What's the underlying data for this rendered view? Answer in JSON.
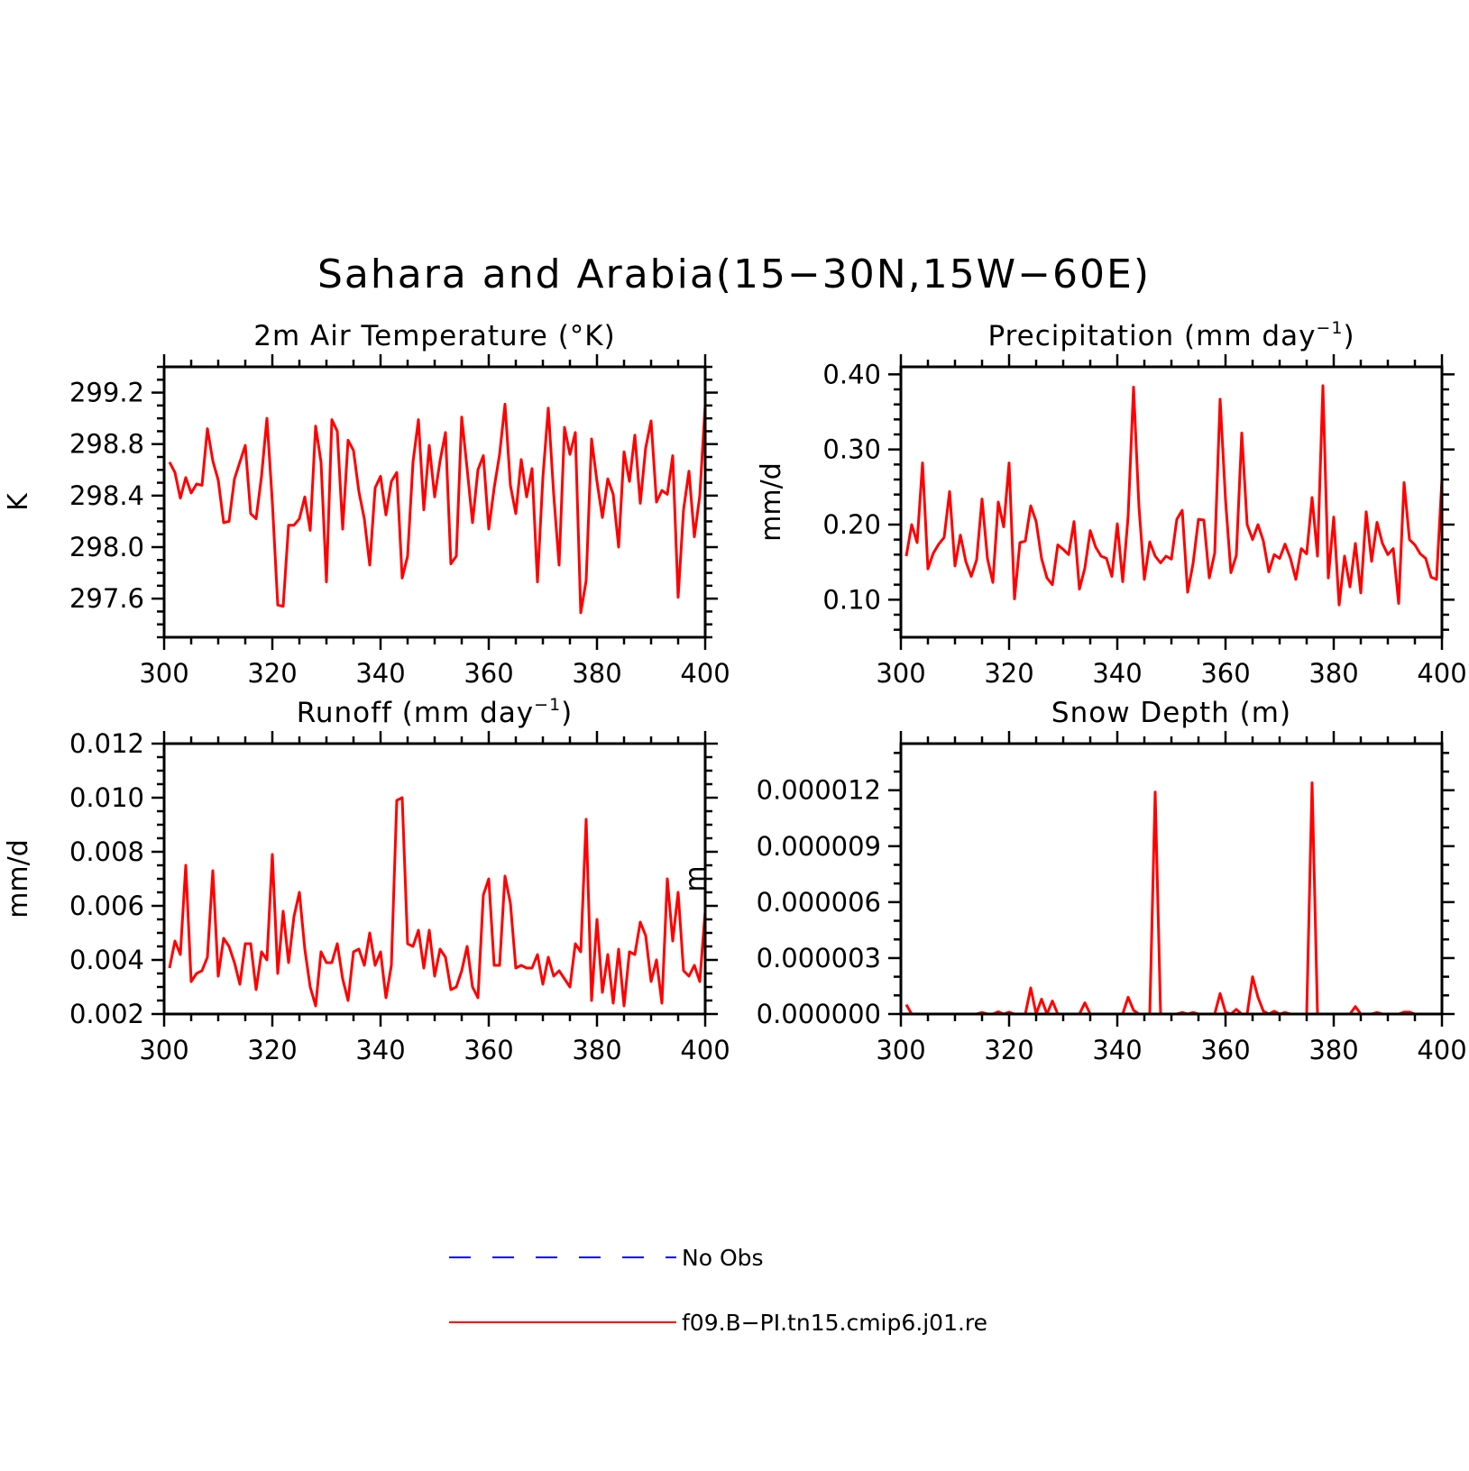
{
  "title": "Sahara and Arabia(15−30N,15W−60E)",
  "colors": {
    "model": "#ff0000",
    "obs": "#0000ff"
  },
  "legend": {
    "entries": [
      {
        "label": "No Obs",
        "color": "#0000ff",
        "style": "dashed"
      },
      {
        "label": "f09.B−PI.tn15.cmip6.j01.re",
        "color": "#ff0000",
        "style": "solid"
      }
    ]
  },
  "chart_data": [
    {
      "id": "temp",
      "type": "line",
      "title": "2m Air Temperature (°K)",
      "title_parts": [
        "2m Air Temperature (°K)"
      ],
      "ylabel": "K",
      "xlim": [
        300,
        400
      ],
      "ylim": [
        297.3,
        299.4
      ],
      "xticks": [
        300,
        320,
        340,
        360,
        380,
        400
      ],
      "xtick_labels": [
        "300",
        "320",
        "340",
        "360",
        "380",
        "400"
      ],
      "xminor": 5,
      "yticks": [
        297.6,
        298.0,
        298.4,
        298.8,
        299.2
      ],
      "ytick_labels": [
        "297.6",
        "298.0",
        "298.4",
        "298.8",
        "299.2"
      ],
      "yminor": 0.1,
      "series": [
        {
          "color": "#ff0000",
          "x_start": 301,
          "x_step": 1,
          "values": [
            298.66,
            298.58,
            298.38,
            298.54,
            298.42,
            298.49,
            298.48,
            298.92,
            298.67,
            298.52,
            298.19,
            298.2,
            298.53,
            298.66,
            298.79,
            298.26,
            298.22,
            298.55,
            299.0,
            298.35,
            297.55,
            297.54,
            298.17,
            298.17,
            298.22,
            298.39,
            298.13,
            298.94,
            298.66,
            297.73,
            298.99,
            298.9,
            298.14,
            298.83,
            298.75,
            298.43,
            298.22,
            297.86,
            298.46,
            298.55,
            298.25,
            298.51,
            298.58,
            297.76,
            297.93,
            298.66,
            298.99,
            298.29,
            298.79,
            298.39,
            298.67,
            298.89,
            297.87,
            297.93,
            299.01,
            298.61,
            298.19,
            298.6,
            298.71,
            298.14,
            298.46,
            298.72,
            299.11,
            298.48,
            298.26,
            298.68,
            298.39,
            298.61,
            297.73,
            298.54,
            299.08,
            298.41,
            297.86,
            298.93,
            298.72,
            298.89,
            297.49,
            297.74,
            298.84,
            298.51,
            298.23,
            298.53,
            298.41,
            298.0,
            298.74,
            298.51,
            298.87,
            298.34,
            298.77,
            298.98,
            298.35,
            298.44,
            298.41,
            298.71,
            297.61,
            298.29,
            298.59,
            298.08,
            298.4,
            299.1
          ]
        }
      ]
    },
    {
      "id": "precip",
      "type": "line",
      "title": "Precipitation (mm day−1)",
      "title_parts": [
        "Precipitation (mm day",
        "−1",
        ")"
      ],
      "ylabel": "mm/d",
      "xlim": [
        300,
        400
      ],
      "ylim": [
        0.05,
        0.41
      ],
      "xticks": [
        300,
        320,
        340,
        360,
        380,
        400
      ],
      "xtick_labels": [
        "300",
        "320",
        "340",
        "360",
        "380",
        "400"
      ],
      "xminor": 5,
      "yticks": [
        0.1,
        0.2,
        0.3,
        0.4
      ],
      "ytick_labels": [
        "0.10",
        "0.20",
        "0.30",
        "0.40"
      ],
      "yminor": 0.02,
      "series": [
        {
          "color": "#ff0000",
          "x_start": 301,
          "x_step": 1,
          "values": [
            0.158,
            0.2,
            0.176,
            0.282,
            0.141,
            0.162,
            0.174,
            0.183,
            0.244,
            0.145,
            0.186,
            0.151,
            0.131,
            0.153,
            0.234,
            0.155,
            0.123,
            0.23,
            0.197,
            0.282,
            0.101,
            0.176,
            0.178,
            0.225,
            0.204,
            0.155,
            0.129,
            0.12,
            0.173,
            0.167,
            0.16,
            0.204,
            0.114,
            0.142,
            0.192,
            0.17,
            0.158,
            0.155,
            0.131,
            0.201,
            0.124,
            0.211,
            0.383,
            0.224,
            0.127,
            0.177,
            0.158,
            0.149,
            0.158,
            0.154,
            0.207,
            0.219,
            0.11,
            0.148,
            0.207,
            0.206,
            0.129,
            0.162,
            0.367,
            0.233,
            0.136,
            0.159,
            0.322,
            0.2,
            0.18,
            0.2,
            0.178,
            0.137,
            0.16,
            0.155,
            0.174,
            0.155,
            0.127,
            0.168,
            0.161,
            0.236,
            0.158,
            0.385,
            0.129,
            0.21,
            0.093,
            0.158,
            0.117,
            0.175,
            0.109,
            0.217,
            0.151,
            0.203,
            0.175,
            0.16,
            0.168,
            0.095,
            0.256,
            0.18,
            0.173,
            0.161,
            0.155,
            0.13,
            0.127,
            0.26
          ]
        }
      ]
    },
    {
      "id": "runoff",
      "type": "line",
      "title": "Runoff (mm day−1)",
      "title_parts": [
        "Runoff (mm day",
        "−1",
        ")"
      ],
      "ylabel": "mm/d",
      "xlim": [
        300,
        400
      ],
      "ylim": [
        0.002,
        0.012
      ],
      "xticks": [
        300,
        320,
        340,
        360,
        380,
        400
      ],
      "xtick_labels": [
        "300",
        "320",
        "340",
        "360",
        "380",
        "400"
      ],
      "xminor": 5,
      "yticks": [
        0.002,
        0.004,
        0.006,
        0.008,
        0.01,
        0.012
      ],
      "ytick_labels": [
        "0.002",
        "0.004",
        "0.006",
        "0.008",
        "0.010",
        "0.012"
      ],
      "yminor": 0.0005,
      "series": [
        {
          "color": "#ff0000",
          "x_start": 301,
          "x_step": 1,
          "values": [
            0.0037,
            0.0047,
            0.0042,
            0.0075,
            0.0032,
            0.0035,
            0.0036,
            0.0041,
            0.0073,
            0.0034,
            0.0048,
            0.0045,
            0.0039,
            0.0031,
            0.0046,
            0.0046,
            0.0029,
            0.0043,
            0.004,
            0.0079,
            0.0035,
            0.0058,
            0.0039,
            0.0056,
            0.0065,
            0.0044,
            0.003,
            0.0023,
            0.0043,
            0.0039,
            0.0039,
            0.0046,
            0.0033,
            0.0025,
            0.0043,
            0.0044,
            0.0038,
            0.005,
            0.0038,
            0.0043,
            0.0026,
            0.0038,
            0.0099,
            0.01,
            0.0046,
            0.0045,
            0.0051,
            0.0037,
            0.0051,
            0.0034,
            0.0044,
            0.0041,
            0.0029,
            0.003,
            0.0036,
            0.0045,
            0.003,
            0.0026,
            0.0064,
            0.007,
            0.0038,
            0.0038,
            0.0071,
            0.0061,
            0.0037,
            0.0038,
            0.0037,
            0.0037,
            0.0042,
            0.0031,
            0.0041,
            0.0034,
            0.0036,
            0.0033,
            0.003,
            0.0046,
            0.0043,
            0.0092,
            0.0025,
            0.0055,
            0.0028,
            0.0042,
            0.0024,
            0.0044,
            0.0023,
            0.0043,
            0.0042,
            0.0054,
            0.0049,
            0.0032,
            0.004,
            0.0024,
            0.007,
            0.0047,
            0.0065,
            0.0036,
            0.0034,
            0.0038,
            0.0032,
            0.0058
          ]
        }
      ]
    },
    {
      "id": "snow",
      "type": "line",
      "title": "Snow Depth (m)",
      "title_parts": [
        "Snow Depth (m)"
      ],
      "ylabel": "m",
      "xlim": [
        300,
        400
      ],
      "ylim": [
        0,
        1.45e-05
      ],
      "xticks": [
        300,
        320,
        340,
        360,
        380,
        400
      ],
      "xtick_labels": [
        "300",
        "320",
        "340",
        "360",
        "380",
        "400"
      ],
      "xminor": 5,
      "yticks": [
        0,
        3e-06,
        6e-06,
        9e-06,
        1.2e-05
      ],
      "ytick_labels": [
        "0.000000",
        "0.000003",
        "0.000006",
        "0.000009",
        "0.000012"
      ],
      "yminor": 1e-06,
      "series": [
        {
          "color": "#ff0000",
          "x_start": 301,
          "x_step": 1,
          "values": [
            5e-07,
            0,
            0,
            0,
            0,
            0,
            0,
            0,
            0,
            0,
            0,
            0,
            0,
            0,
            8e-08,
            0,
            0,
            1.2e-07,
            0,
            1e-07,
            0,
            0,
            0,
            1.4e-06,
            0,
            8e-07,
            0,
            7e-07,
            0,
            0,
            0,
            0,
            0,
            6e-07,
            0,
            0,
            0,
            0,
            0,
            0,
            0,
            9e-07,
            2e-07,
            0,
            0,
            0,
            1.19e-05,
            0,
            0,
            0,
            0,
            8e-08,
            0,
            8e-08,
            0,
            0,
            0,
            0,
            1.1e-06,
            1e-07,
            0,
            2.5e-07,
            0,
            0,
            2e-06,
            9e-07,
            1.5e-07,
            0,
            1.5e-07,
            0,
            8e-08,
            0,
            0,
            0,
            0,
            1.24e-05,
            0,
            0,
            0,
            0,
            0,
            0,
            0,
            4e-07,
            0,
            0,
            0,
            8e-08,
            0,
            0,
            0,
            0,
            1e-07,
            1e-07,
            0,
            0,
            0,
            0,
            0,
            0
          ]
        }
      ]
    }
  ]
}
